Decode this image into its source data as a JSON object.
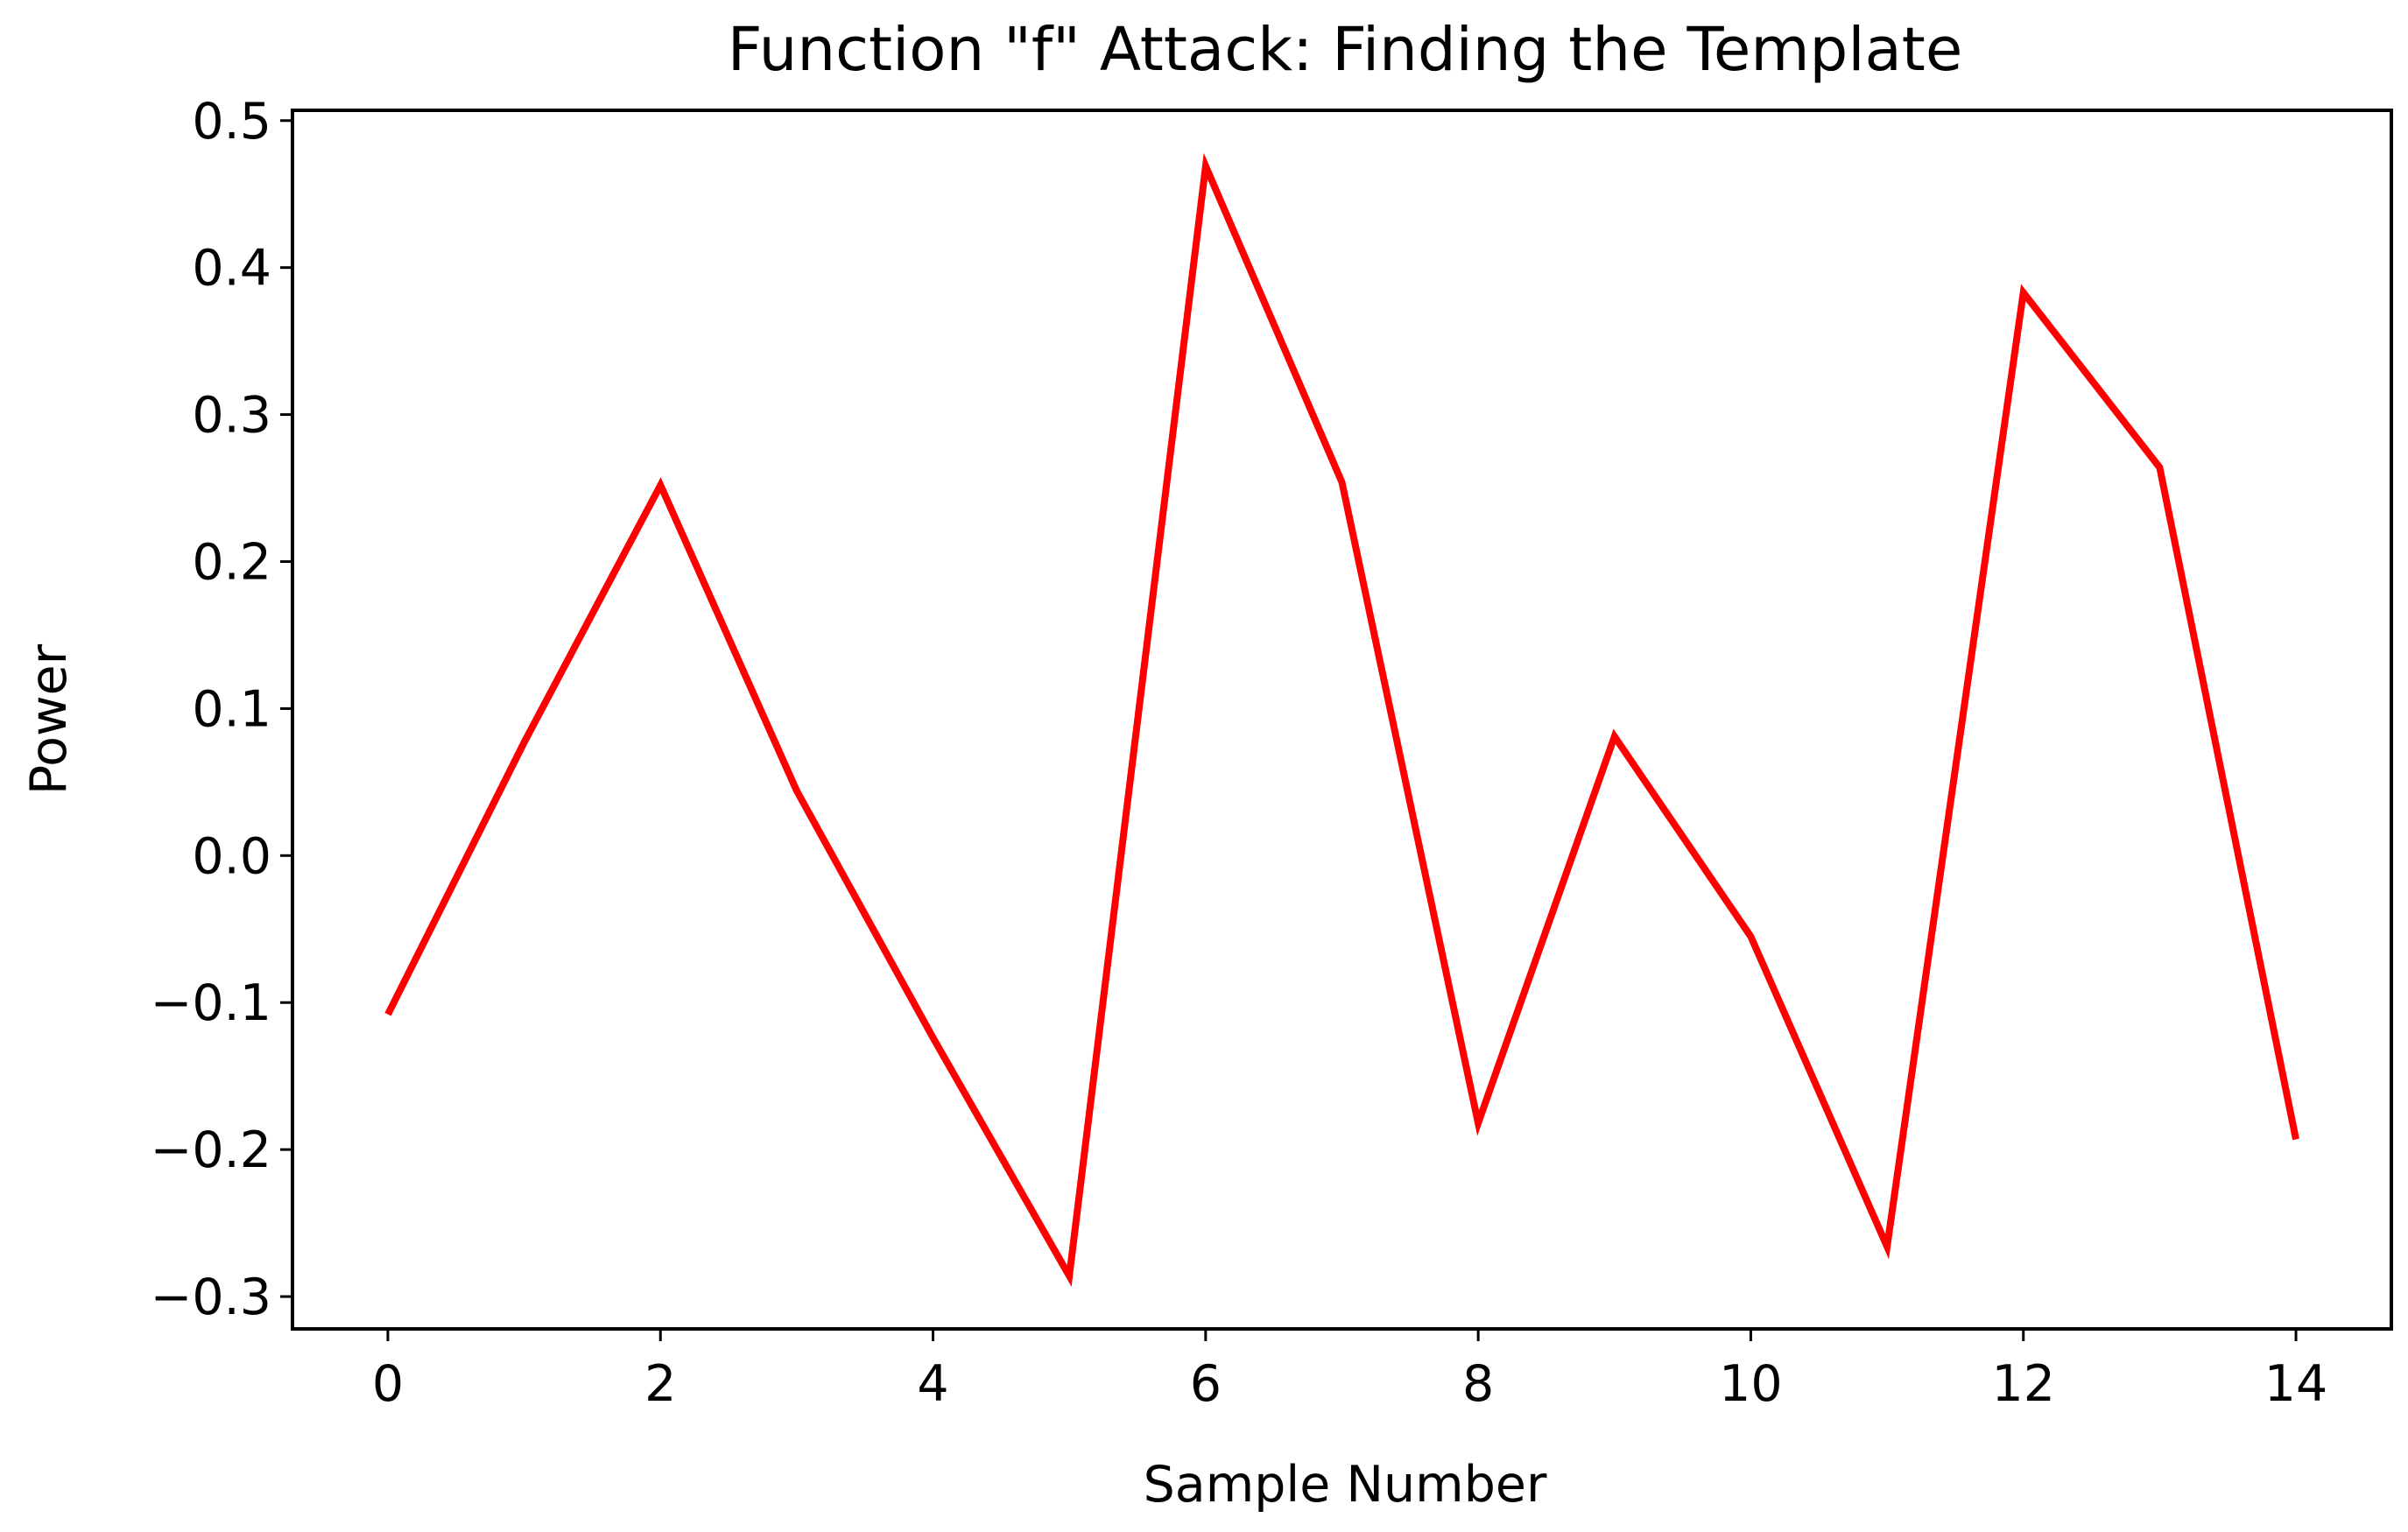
{
  "chart_data": {
    "type": "line",
    "title": "Function \"f\" Attack: Finding the Template",
    "xlabel": "Sample Number",
    "ylabel": "Power",
    "xlim": [
      -0.7,
      14.7
    ],
    "ylim": [
      -0.322,
      0.507
    ],
    "xticks": [
      0,
      2,
      4,
      6,
      8,
      10,
      12,
      14
    ],
    "xtick_labels": [
      "0",
      "2",
      "4",
      "6",
      "8",
      "10",
      "12",
      "14"
    ],
    "yticks": [
      -0.3,
      -0.2,
      -0.1,
      0.0,
      0.1,
      0.2,
      0.3,
      0.4,
      0.5
    ],
    "ytick_labels": [
      "−0.3",
      "−0.2",
      "−0.1",
      "0.0",
      "0.1",
      "0.2",
      "0.3",
      "0.4",
      "0.5"
    ],
    "grid": false,
    "series": [
      {
        "color": "#ff0000",
        "x": [
          0,
          1,
          2,
          3,
          4,
          5,
          6,
          7,
          8,
          9,
          10,
          11,
          12,
          13,
          14
        ],
        "y": [
          -0.108,
          0.077,
          0.252,
          0.044,
          -0.124,
          -0.286,
          0.469,
          0.254,
          -0.182,
          0.081,
          -0.055,
          -0.266,
          0.383,
          0.264,
          -0.193
        ]
      }
    ]
  }
}
